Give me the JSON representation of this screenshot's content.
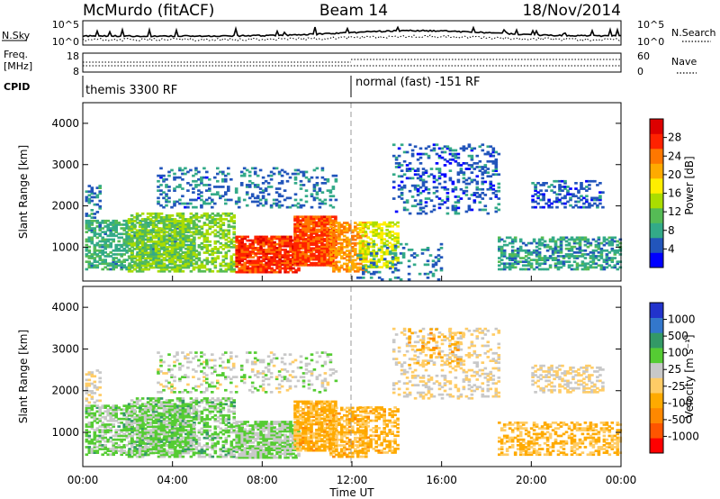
{
  "header": {
    "station": "McMurdo (fitACF)",
    "beam": "Beam 14",
    "date": "18/Nov/2014"
  },
  "colors": {
    "power": [
      "#0000ff",
      "#2255bb",
      "#33aa88",
      "#55bb55",
      "#aadd00",
      "#ffee00",
      "#ffaa00",
      "#ff7700",
      "#ff2200",
      "#dd0000"
    ],
    "velocity": [
      "#ff0000",
      "#ff5500",
      "#ff8800",
      "#ffaa00",
      "#ffcc66",
      "#c8c8c8",
      "#55cc33",
      "#339966",
      "#3377cc",
      "#2233cc"
    ],
    "ground_scatter": "#aaaaaa"
  },
  "top_panels": {
    "nsky": {
      "label": "N.Sky",
      "left_ticks": [
        "10^5",
        "10^0"
      ],
      "right_ticks": [
        "10^5",
        "10^0"
      ],
      "right_label": "N.Search"
    },
    "freq": {
      "label_line1": "Freq.",
      "label_line2": "[MHz]",
      "left_ticks": [
        "18",
        "8"
      ],
      "right_ticks": [
        "60",
        "0"
      ],
      "right_label": "Nave"
    },
    "cpid": {
      "label": "CPID",
      "modes": [
        {
          "text": "themis 3300 RF",
          "start": 0,
          "end": 12.0
        },
        {
          "text": "normal (fast) -151 RF",
          "start": 12.0,
          "end": 24
        }
      ]
    }
  },
  "chart_data": [
    {
      "type": "heatmap",
      "title": "",
      "parameter": "Power",
      "colorbar_label": "Power [dB]",
      "colorbar_ticks": [
        "28",
        "24",
        "20",
        "16",
        "12",
        "8",
        "4"
      ],
      "colorbar_range": [
        0,
        32
      ],
      "ylabel": "Slant Range [km]",
      "yticks": [
        "4000",
        "3000",
        "2000",
        "1000"
      ],
      "ylim": [
        180,
        4500
      ],
      "xlim": [
        0,
        24
      ],
      "scatter_regions": [
        {
          "t0": 0.1,
          "t1": 5.0,
          "r0": 450,
          "r1": 1650,
          "value": 9,
          "density": 0.6
        },
        {
          "t0": 2.0,
          "t1": 6.8,
          "r0": 400,
          "r1": 1800,
          "value": 13,
          "density": 0.55
        },
        {
          "t0": 6.8,
          "t1": 9.6,
          "r0": 380,
          "r1": 1250,
          "value": 27,
          "density": 0.85
        },
        {
          "t0": 9.4,
          "t1": 11.3,
          "r0": 550,
          "r1": 1750,
          "value": 26,
          "density": 0.85
        },
        {
          "t0": 11.0,
          "t1": 12.6,
          "r0": 400,
          "r1": 1600,
          "value": 22,
          "density": 0.6
        },
        {
          "t0": 12.3,
          "t1": 14.0,
          "r0": 500,
          "r1": 1600,
          "value": 16,
          "density": 0.5
        },
        {
          "t0": 3.3,
          "t1": 11.3,
          "r0": 1950,
          "r1": 2900,
          "value": 6,
          "density": 0.22
        },
        {
          "t0": 13.8,
          "t1": 18.6,
          "r0": 1800,
          "r1": 3500,
          "value": 5,
          "density": 0.25
        },
        {
          "t0": 12.2,
          "t1": 16.0,
          "r0": 200,
          "r1": 1100,
          "value": 6,
          "density": 0.18
        },
        {
          "t0": 18.5,
          "t1": 24.0,
          "r0": 450,
          "r1": 1250,
          "value": 8,
          "density": 0.5
        },
        {
          "t0": 20.0,
          "t1": 23.2,
          "r0": 1950,
          "r1": 2600,
          "value": 5,
          "density": 0.35
        },
        {
          "t0": 0.1,
          "t1": 0.8,
          "r0": 1700,
          "r1": 2500,
          "value": 7,
          "density": 0.35
        }
      ]
    },
    {
      "type": "heatmap",
      "title": "",
      "parameter": "Velocity",
      "colorbar_label": "Velocity [m s⁻¹]",
      "colorbar_ticks": [
        "1000",
        "500",
        "100",
        "25",
        "-25",
        "-100",
        "-500",
        "-1000"
      ],
      "colorbar_range": [
        -1200,
        1200
      ],
      "ylabel": "Slant Range [km]",
      "yticks": [
        "4000",
        "3000",
        "2000",
        "1000"
      ],
      "ylim": [
        180,
        4500
      ],
      "xlim": [
        0,
        24
      ],
      "xlabel": "Time UT",
      "xticks": [
        "00:00",
        "04:00",
        "08:00",
        "12:00",
        "16:00",
        "20:00",
        "00:00"
      ],
      "scatter_regions": [
        {
          "t0": 0.1,
          "t1": 5.0,
          "r0": 450,
          "r1": 1650,
          "value": 300,
          "density": 0.6
        },
        {
          "t0": 2.0,
          "t1": 6.8,
          "r0": 400,
          "r1": 1800,
          "value": 300,
          "density": 0.55
        },
        {
          "t0": 6.8,
          "t1": 9.6,
          "r0": 380,
          "r1": 1250,
          "value": 250,
          "density": 0.85
        },
        {
          "t0": 9.4,
          "t1": 11.3,
          "r0": 550,
          "r1": 1750,
          "value": -300,
          "density": 0.8
        },
        {
          "t0": 11.0,
          "t1": 12.6,
          "r0": 400,
          "r1": 1600,
          "value": -300,
          "density": 0.6
        },
        {
          "t0": 12.3,
          "t1": 14.0,
          "r0": 500,
          "r1": 1600,
          "value": -300,
          "density": 0.45
        },
        {
          "t0": 3.3,
          "t1": 11.3,
          "r0": 1950,
          "r1": 2900,
          "value": 150,
          "density": 0.2
        },
        {
          "t0": 13.8,
          "t1": 18.6,
          "r0": 1800,
          "r1": 3500,
          "value": 0,
          "density": 0.25
        },
        {
          "t0": 14.5,
          "t1": 17.0,
          "r0": 2600,
          "r1": 3500,
          "value": -300,
          "density": 0.2
        },
        {
          "t0": 18.5,
          "t1": 24.0,
          "r0": 450,
          "r1": 1250,
          "value": -250,
          "density": 0.45
        },
        {
          "t0": 20.0,
          "t1": 23.2,
          "r0": 1950,
          "r1": 2600,
          "value": 0,
          "density": 0.4
        },
        {
          "t0": 0.1,
          "t1": 0.8,
          "r0": 1700,
          "r1": 2500,
          "value": 0,
          "density": 0.35
        }
      ]
    }
  ]
}
